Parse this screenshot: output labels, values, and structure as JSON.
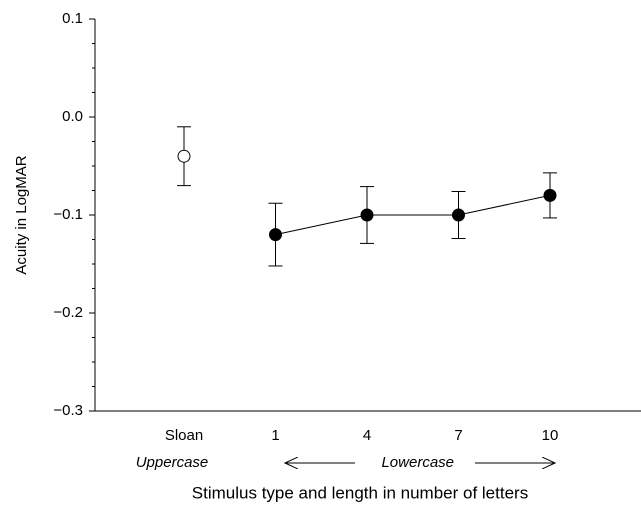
{
  "chart_data": {
    "type": "errorbar",
    "xlabel": "Stimulus type and length in number of letters",
    "ylabel": "Acuity in LogMAR",
    "categories": [
      "Sloan",
      "1",
      "4",
      "7",
      "10"
    ],
    "series": [
      {
        "name": "Uppercase",
        "color": "#000000",
        "marker_fill": "#ffffff",
        "line": false,
        "values": [
          -0.04,
          null,
          null,
          null,
          null
        ],
        "errors": [
          0.03,
          null,
          null,
          null,
          null
        ]
      },
      {
        "name": "Lowercase",
        "color": "#000000",
        "marker_fill": "#000000",
        "line": true,
        "values": [
          null,
          -0.12,
          -0.1,
          -0.1,
          -0.08
        ],
        "errors": [
          null,
          0.032,
          0.029,
          0.024,
          0.023
        ]
      }
    ],
    "ylim": [
      -0.3,
      0.1
    ],
    "yticks": [
      {
        "value": -0.3,
        "label": "−0.3"
      },
      {
        "value": -0.2,
        "label": "−0.2"
      },
      {
        "value": -0.1,
        "label": "−0.1"
      },
      {
        "value": 0.0,
        "label": "0.0"
      },
      0.1
    ],
    "yminor_ticks": [
      -0.275,
      -0.25,
      -0.225,
      -0.175,
      -0.15,
      -0.125,
      -0.075,
      -0.05,
      -0.025,
      0.025,
      0.05,
      0.075
    ]
  }
}
